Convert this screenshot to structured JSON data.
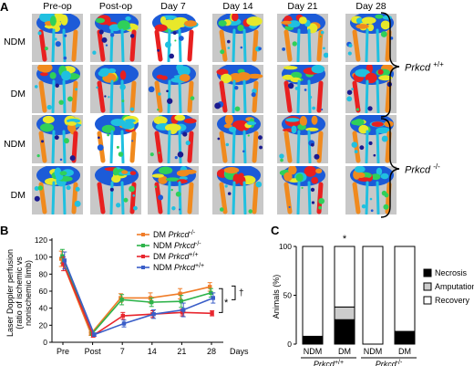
{
  "panelA": {
    "letter": "A",
    "columns": [
      "Pre-op",
      "Post-op",
      "Day 7",
      "Day 14",
      "Day 21",
      "Day 28"
    ],
    "rows": [
      "NDM",
      "DM",
      "NDM",
      "DM"
    ],
    "genotypes": [
      {
        "gene": "Prkcd",
        "sup": "+/+"
      },
      {
        "gene": "Prkcd",
        "sup": "-/-"
      }
    ]
  },
  "chart_data": [
    {
      "panel": "B",
      "type": "line",
      "ylabel": "Laser Doppler perfusion (ratio of ischemic vs nonischemic limb)",
      "xlabel": "Days",
      "categories": [
        "Pre",
        "Post",
        "7",
        "14",
        "21",
        "28"
      ],
      "yticks": [
        0,
        20,
        40,
        60,
        80,
        100,
        120
      ],
      "ylim": [
        0,
        120
      ],
      "series": [
        {
          "name": "DM Prkcd-/-",
          "gene": "Prkcd",
          "cond": "DM",
          "sup": "-/-",
          "color": "#f07c28",
          "values": [
            98,
            10,
            52,
            52,
            57,
            65
          ],
          "err": [
            9,
            2,
            5,
            6,
            6,
            5
          ]
        },
        {
          "name": "NDM Prkcd-/-",
          "gene": "Prkcd",
          "cond": "NDM",
          "sup": "-/-",
          "color": "#2db34a",
          "values": [
            101,
            10,
            50,
            47,
            48,
            58
          ],
          "err": [
            8,
            2,
            6,
            5,
            7,
            5
          ]
        },
        {
          "name": "DM Prkcd+/+",
          "gene": "Prkcd",
          "cond": "DM",
          "sup": "+/+",
          "color": "#e8262e",
          "values": [
            92,
            8,
            31,
            33,
            35,
            34
          ],
          "err": [
            8,
            2,
            4,
            4,
            4,
            3
          ]
        },
        {
          "name": "NDM Prkcd+/+",
          "gene": "Prkcd",
          "cond": "NDM",
          "sup": "+/+",
          "color": "#3a5ec8",
          "values": [
            96,
            9,
            22,
            33,
            38,
            52
          ],
          "err": [
            10,
            2,
            4,
            5,
            8,
            6
          ]
        }
      ],
      "annotations": {
        "star": "*",
        "dagger": "†"
      }
    },
    {
      "panel": "C",
      "type": "bar",
      "stacked": true,
      "ylabel": "Animals (%)",
      "yticks": [
        0,
        50,
        100
      ],
      "ylim": [
        0,
        100
      ],
      "categories": [
        "NDM",
        "DM",
        "NDM",
        "DM"
      ],
      "groups": [
        {
          "gene": "Prkcd",
          "sup": "+/+"
        },
        {
          "gene": "Prkcd",
          "sup": "-/-"
        }
      ],
      "series": [
        {
          "name": "Necrosis",
          "color": "#000000",
          "values": [
            8,
            25,
            0,
            13
          ]
        },
        {
          "name": "Amputation",
          "color": "#cccccc",
          "values": [
            0,
            13,
            0,
            0
          ]
        },
        {
          "name": "Recovery",
          "color": "#ffffff",
          "values": [
            92,
            62,
            100,
            87
          ]
        }
      ],
      "annotations": {
        "star": "*"
      }
    }
  ]
}
